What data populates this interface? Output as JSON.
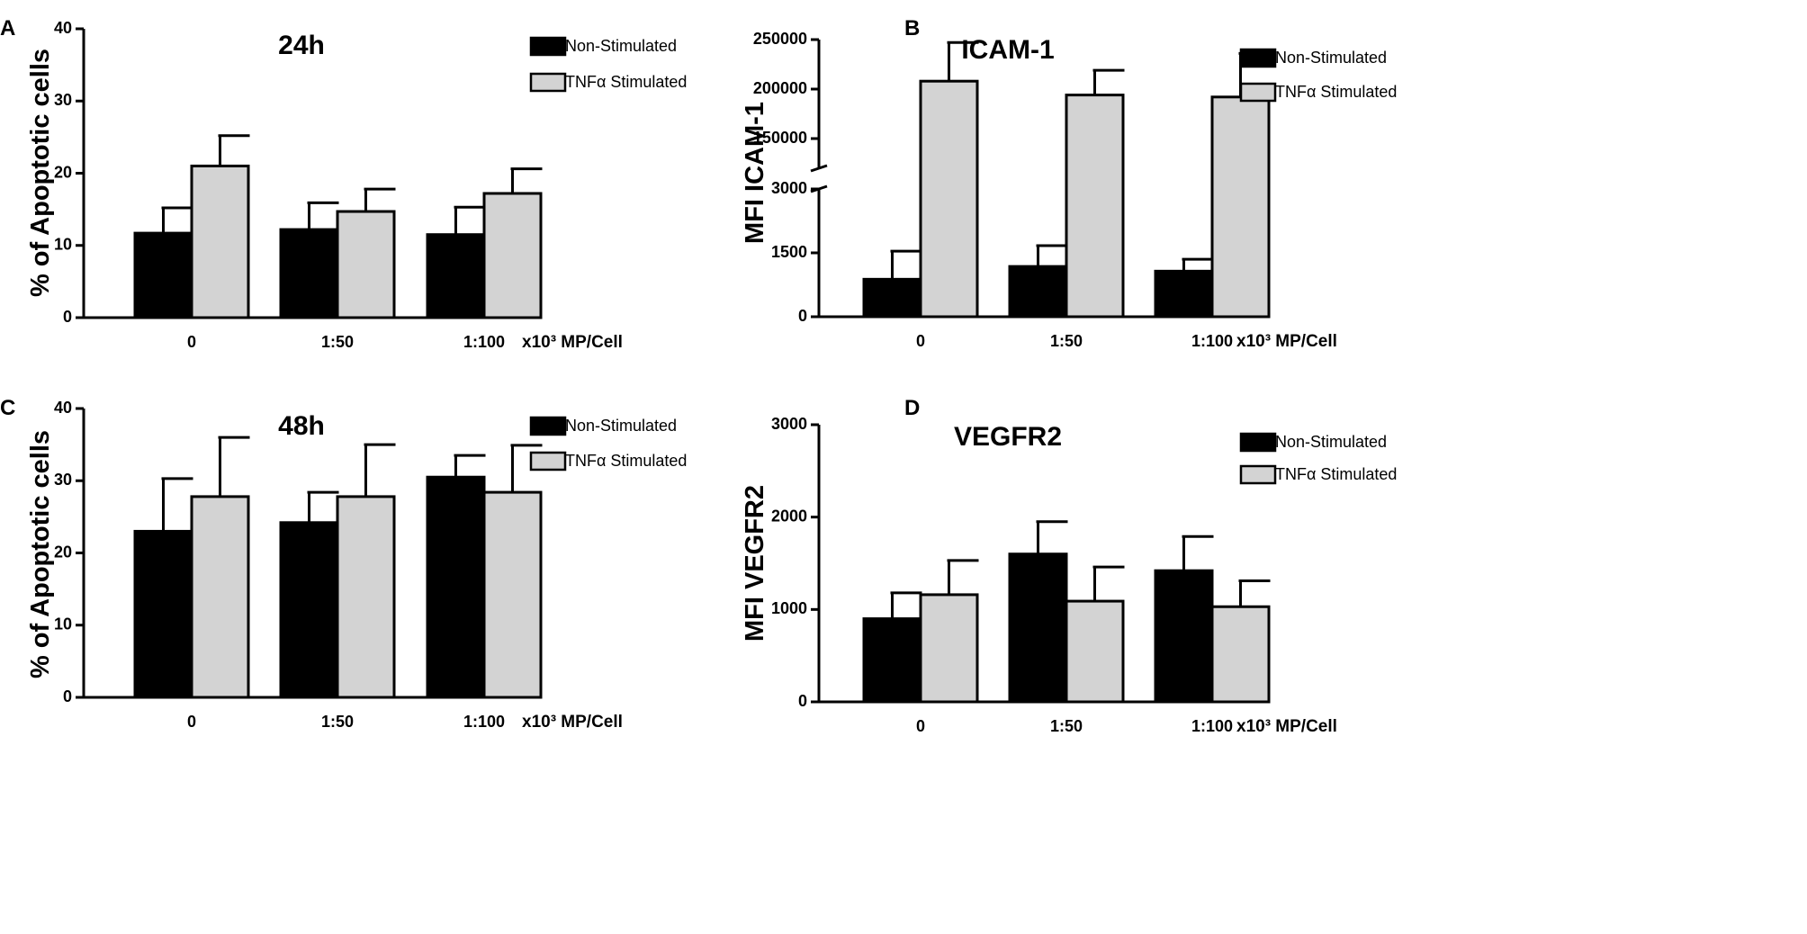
{
  "colors": {
    "non_stimulated": "#000000",
    "tnf_stimulated": "#d3d3d3",
    "axis": "#000000"
  },
  "chart_data": [
    {
      "panel_label": "A",
      "type": "bar",
      "title": "24h",
      "ylabel": "% of Apoptotic cells",
      "xlabel": "x10³ MP/Cell",
      "categories": [
        "0",
        "1:50",
        "1:100"
      ],
      "ylim": [
        0,
        40
      ],
      "yticks": [
        0,
        10,
        20,
        30,
        40
      ],
      "series": [
        {
          "name": "Non-Stimulated",
          "values": [
            11.7,
            12.2,
            11.5
          ],
          "errors": [
            3.5,
            3.7,
            3.8
          ]
        },
        {
          "name": "TNFα Stimulated",
          "values": [
            21.0,
            14.7,
            17.2
          ],
          "errors": [
            4.2,
            3.1,
            3.4
          ]
        }
      ]
    },
    {
      "panel_label": "B",
      "type": "bar",
      "title": "ICAM-1",
      "ylabel": "MFI ICAM-1",
      "xlabel": "x10³ MP/Cell",
      "categories": [
        "0",
        "1:50",
        "1:100"
      ],
      "axis_break": {
        "lower_range": [
          0,
          3000
        ],
        "upper_range": [
          120000,
          250000
        ]
      },
      "yticks": [
        0,
        1500,
        3000,
        150000,
        200000,
        250000
      ],
      "series": [
        {
          "name": "Non-Stimulated",
          "values": [
            880,
            1180,
            1070
          ],
          "errors": [
            660,
            490,
            280
          ]
        },
        {
          "name": "TNFα Stimulated",
          "values": [
            208000,
            194000,
            192000
          ],
          "errors": [
            39000,
            25000,
            44000
          ]
        }
      ]
    },
    {
      "panel_label": "C",
      "type": "bar",
      "title": "48h",
      "ylabel": "% of Apoptotic cells",
      "xlabel": "x10³ MP/Cell",
      "categories": [
        "0",
        "1:50",
        "1:100"
      ],
      "ylim": [
        0,
        40
      ],
      "yticks": [
        0,
        10,
        20,
        30,
        40
      ],
      "series": [
        {
          "name": "Non-Stimulated",
          "values": [
            23.0,
            24.2,
            30.5
          ],
          "errors": [
            7.3,
            4.2,
            3.0
          ]
        },
        {
          "name": "TNFα Stimulated",
          "values": [
            27.8,
            27.8,
            28.4
          ],
          "errors": [
            8.2,
            7.2,
            6.5
          ]
        }
      ]
    },
    {
      "panel_label": "D",
      "type": "bar",
      "title": "VEGFR2",
      "ylabel": "MFI VEGFR2",
      "xlabel": "x10³ MP/Cell",
      "categories": [
        "0",
        "1:50",
        "1:100"
      ],
      "ylim": [
        0,
        3000
      ],
      "yticks": [
        0,
        1000,
        2000,
        3000
      ],
      "series": [
        {
          "name": "Non-Stimulated",
          "values": [
            900,
            1600,
            1420
          ],
          "errors": [
            280,
            350,
            370
          ]
        },
        {
          "name": "TNFα Stimulated",
          "values": [
            1160,
            1090,
            1030
          ],
          "errors": [
            370,
            370,
            280
          ]
        }
      ]
    }
  ]
}
